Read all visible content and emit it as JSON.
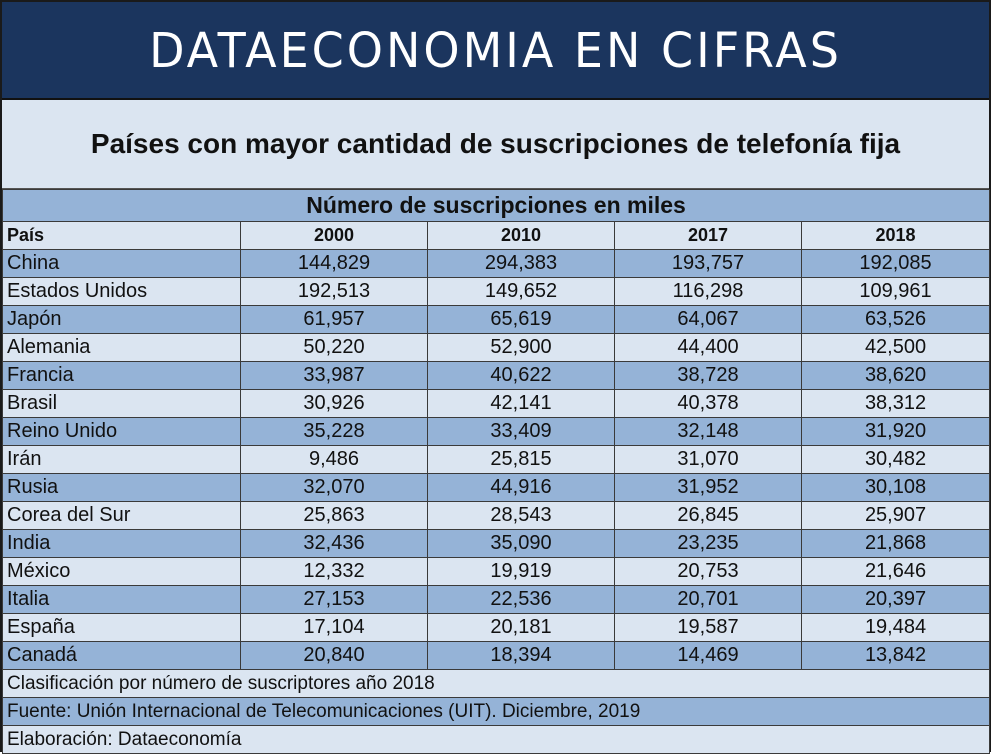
{
  "banner_title": "DATAECONOMIA EN CIFRAS",
  "subtitle": "Países con mayor cantidad de suscripciones de telefonía fija",
  "table": {
    "caption": "Número de suscripciones en miles",
    "headers": [
      "País",
      "2000",
      "2010",
      "2017",
      "2018"
    ],
    "rows": [
      [
        "China",
        "144,829",
        "294,383",
        "193,757",
        "192,085"
      ],
      [
        "Estados Unidos",
        "192,513",
        "149,652",
        "116,298",
        "109,961"
      ],
      [
        "Japón",
        "61,957",
        "65,619",
        "64,067",
        "63,526"
      ],
      [
        "Alemania",
        "50,220",
        "52,900",
        "44,400",
        "42,500"
      ],
      [
        "Francia",
        "33,987",
        "40,622",
        "38,728",
        "38,620"
      ],
      [
        "Brasil",
        "30,926",
        "42,141",
        "40,378",
        "38,312"
      ],
      [
        "Reino Unido",
        "35,228",
        "33,409",
        "32,148",
        "31,920"
      ],
      [
        "Irán",
        "9,486",
        "25,815",
        "31,070",
        "30,482"
      ],
      [
        "Rusia",
        "32,070",
        "44,916",
        "31,952",
        "30,108"
      ],
      [
        "Corea del Sur",
        "25,863",
        "28,543",
        "26,845",
        "25,907"
      ],
      [
        "India",
        "32,436",
        "35,090",
        "23,235",
        "21,868"
      ],
      [
        "México",
        "12,332",
        "19,919",
        "20,753",
        "21,646"
      ],
      [
        "Italia",
        "27,153",
        "22,536",
        "20,701",
        "20,397"
      ],
      [
        "España",
        "17,104",
        "20,181",
        "19,587",
        "19,484"
      ],
      [
        "Canadá",
        "20,840",
        "18,394",
        "14,469",
        "13,842"
      ]
    ]
  },
  "notes": [
    "Clasificación por número de suscriptores año 2018",
    "Fuente: Unión Internacional de Telecomunicaciones (UIT). Diciembre, 2019",
    "Elaboración: Dataeconomía"
  ],
  "colors": {
    "banner_bg": "#1b355e",
    "row_dark": "#95b3d7",
    "row_light": "#dbe5f1"
  }
}
